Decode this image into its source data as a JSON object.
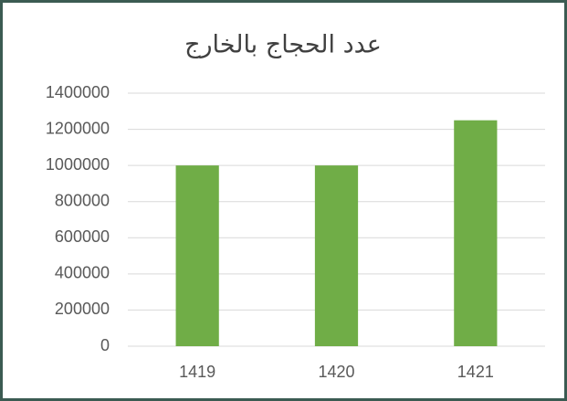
{
  "chart_data": {
    "type": "bar",
    "title": "عدد الحجاج بالخارج",
    "categories": [
      "1419",
      "1420",
      "1421"
    ],
    "values": [
      1000000,
      1000000,
      1250000
    ],
    "color": "#70ad47",
    "ylim": [
      0,
      1400000
    ],
    "yticks": [
      0,
      200000,
      400000,
      600000,
      800000,
      1000000,
      1200000,
      1400000
    ],
    "grid": true
  }
}
